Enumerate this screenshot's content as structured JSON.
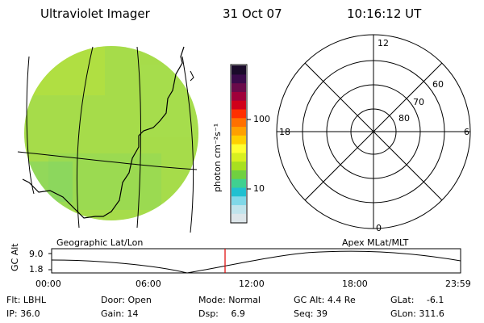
{
  "header": {
    "instrument": "Ultraviolet Imager",
    "date": "31 Oct 07",
    "time": "10:16:12 UT"
  },
  "colorbar": {
    "unit_label": "photon cm⁻²s⁻¹",
    "ticks": [
      "100",
      "10"
    ],
    "colors": [
      "#1a0a2a",
      "#3a0a4a",
      "#6a0a4a",
      "#a0003a",
      "#d0001a",
      "#ff3000",
      "#ff7000",
      "#ffa000",
      "#ffd000",
      "#ffff30",
      "#d8f020",
      "#a8e020",
      "#70d040",
      "#40d090",
      "#20c0d0",
      "#80d8e8",
      "#c0e4ec",
      "#dde6ea"
    ]
  },
  "polar_plot": {
    "mlt_labels": {
      "top": "12",
      "left": "18",
      "right": "6",
      "bottom": "0"
    },
    "lat_labels": [
      "80",
      "70",
      "60"
    ]
  },
  "image_panel": {
    "fill_color": "#a6dc4a"
  },
  "labels": {
    "left_caption": "Geographic Lat/Lon",
    "right_caption": "Apex MLat/MLT"
  },
  "altitude_plot": {
    "axis_title": "GC Alt",
    "y_ticks": [
      "9.0",
      "1.8"
    ],
    "x_ticks": [
      "00:00",
      "06:00",
      "12:00",
      "18:00",
      "23:59"
    ],
    "marker_color": "#e00000"
  },
  "info": {
    "row1": [
      {
        "label": "Flt:",
        "value": "LBHL"
      },
      {
        "label": "Door:",
        "value": "Open"
      },
      {
        "label": "Mode:",
        "value": "Normal"
      },
      {
        "label": "GC Alt:",
        "value": "4.4 Re"
      },
      {
        "label": "GLat:",
        "value": "-6.1"
      }
    ],
    "row2": [
      {
        "label": "IP:",
        "value": "36.0"
      },
      {
        "label": "Gain:",
        "value": "14"
      },
      {
        "label": "Dsp:",
        "value": "6.9"
      },
      {
        "label": "Seq:",
        "value": "39"
      },
      {
        "label": "GLon:",
        "value": "311.6"
      }
    ]
  }
}
